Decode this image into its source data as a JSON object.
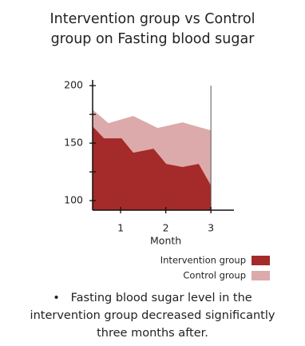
{
  "chart_data": {
    "type": "area",
    "title": "Intervention group vs Control group on Fasting blood sugar",
    "x_label": "Month",
    "series": [
      {
        "name": "Control group",
        "color": "#dcaaaa",
        "x": [
          0.38,
          0.73,
          1.28,
          1.82,
          2.37,
          3
        ],
        "values": [
          179.2,
          167.4,
          173.6,
          163.2,
          168.1,
          161.1
        ]
      },
      {
        "name": "Intervention group",
        "color": "#a52a2a",
        "x": [
          0.38,
          0.63,
          1.02,
          1.28,
          1.73,
          2.01,
          2.37,
          2.73,
          3
        ],
        "values": [
          164.6,
          154.2,
          154.2,
          141.7,
          145.1,
          131.9,
          129.2,
          131.9,
          113.2
        ]
      }
    ],
    "xlim": [
      0.38,
      3.51
    ],
    "xticks": [
      1,
      2,
      3
    ],
    "ylim": [
      91.7,
      205
    ],
    "yticks": [
      100,
      150,
      200
    ],
    "minor_yticks": [
      125,
      175
    ],
    "legend": "lower right",
    "note": "Fasting blood sugar level in the intervention group decreased significantly three months after."
  }
}
